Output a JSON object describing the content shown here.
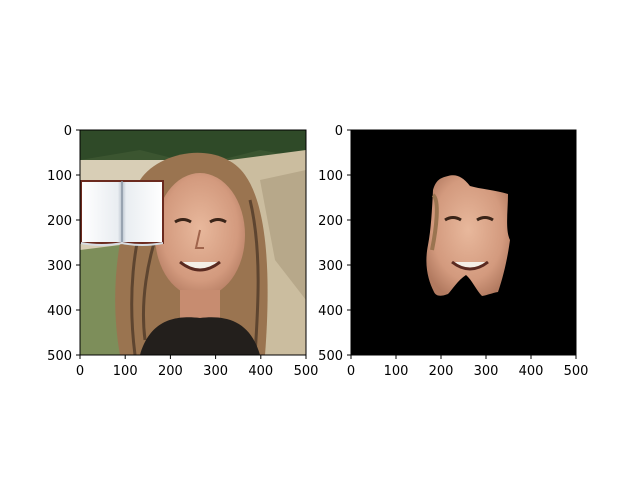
{
  "chart_data": [
    {
      "type": "image",
      "content": "photo of a smiling long-haired man outdoors, with an open book graphic overlaid on the left",
      "xlim": [
        0,
        500
      ],
      "ylim": [
        500,
        0
      ],
      "xticks": [
        0,
        100,
        200,
        300,
        400,
        500
      ],
      "yticks": [
        0,
        100,
        200,
        300,
        400,
        500
      ],
      "xticklabels": [
        "0",
        "100",
        "200",
        "300",
        "400",
        "500"
      ],
      "yticklabels": [
        "0",
        "100",
        "200",
        "300",
        "400",
        "500"
      ],
      "title": "",
      "xlabel": "",
      "ylabel": ""
    },
    {
      "type": "image",
      "content": "segmented face region on black background",
      "xlim": [
        0,
        500
      ],
      "ylim": [
        500,
        0
      ],
      "xticks": [
        0,
        100,
        200,
        300,
        400,
        500
      ],
      "yticks": [
        0,
        100,
        200,
        300,
        400,
        500
      ],
      "xticklabels": [
        "0",
        "100",
        "200",
        "300",
        "400",
        "500"
      ],
      "yticklabels": [
        "0",
        "100",
        "200",
        "300",
        "400",
        "500"
      ],
      "background": "#000000",
      "title": "",
      "xlabel": "",
      "ylabel": ""
    }
  ],
  "colors": {
    "skin": "#d9a48a",
    "skin_shadow": "#b57a62",
    "hair": "#9a7450",
    "hair_dark": "#5e4530",
    "foliage": "#2f4a28",
    "rock": "#c9b89a",
    "sky_light": "#e8e2d2",
    "shirt": "#231f1c",
    "book_page": "#f2f4f6",
    "book_edge": "#6b2a1e",
    "mask_bg": "#000000"
  }
}
